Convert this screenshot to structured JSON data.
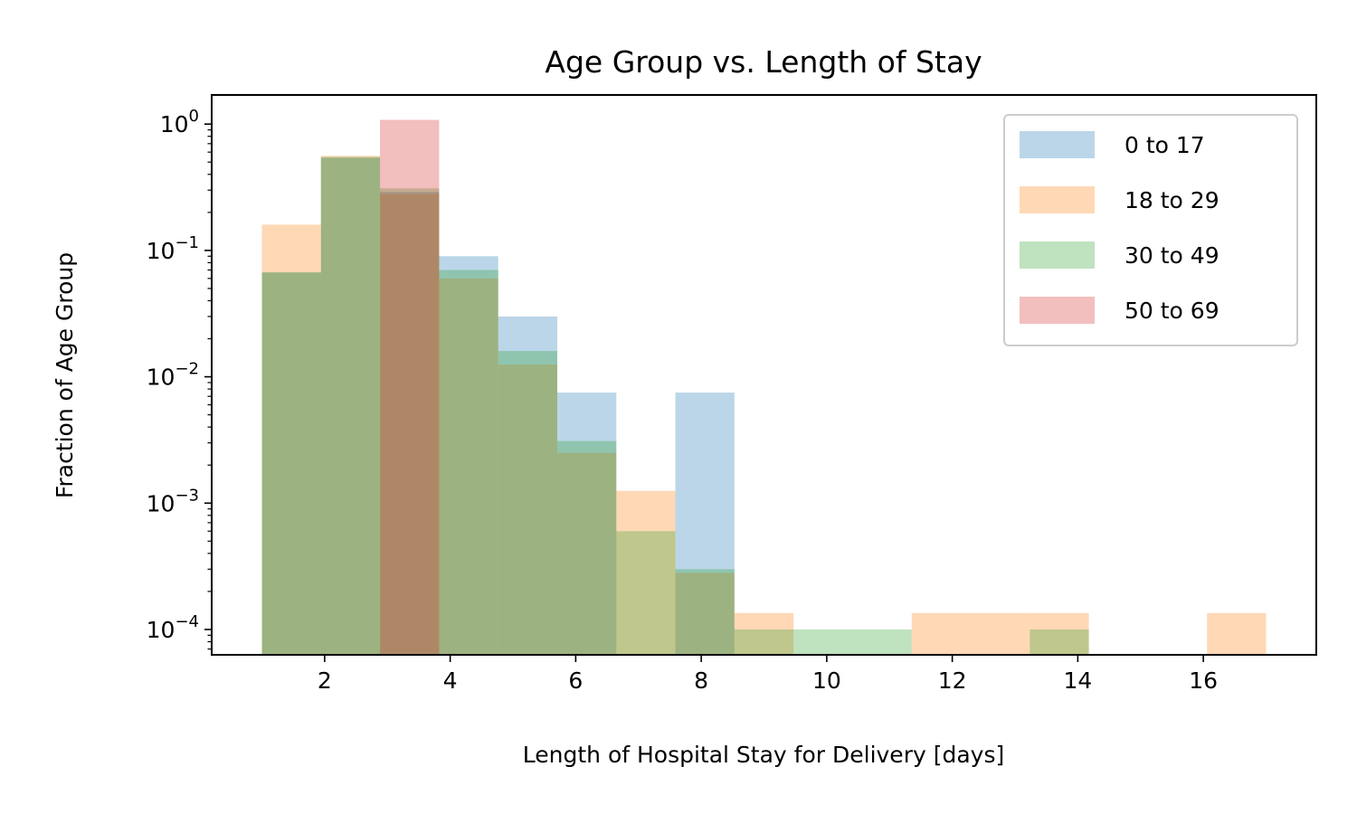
{
  "chart_data": {
    "type": "histogram",
    "title": "Age Group vs. Length of Stay",
    "xlabel": "Length of Hospital Stay for Delivery [days]",
    "ylabel": "Fraction of Age Group",
    "xlim": [
      0.2,
      17.8
    ],
    "ylim": [
      6.3e-05,
      1.7
    ],
    "yscale": "log",
    "grid": false,
    "legend_position": "top-right",
    "x_ticks": [
      {
        "value": 2,
        "label": "2"
      },
      {
        "value": 4,
        "label": "4"
      },
      {
        "value": 6,
        "label": "6"
      },
      {
        "value": 8,
        "label": "8"
      },
      {
        "value": 10,
        "label": "10"
      },
      {
        "value": 12,
        "label": "12"
      },
      {
        "value": 14,
        "label": "14"
      },
      {
        "value": 16,
        "label": "16"
      }
    ],
    "y_ticks": [
      {
        "value": 1,
        "base": "10",
        "exp": "0"
      },
      {
        "value": 0.1,
        "base": "10",
        "exp": "−1"
      },
      {
        "value": 0.01,
        "base": "10",
        "exp": "−2"
      },
      {
        "value": 0.001,
        "base": "10",
        "exp": "−3"
      },
      {
        "value": 0.0001,
        "base": "10",
        "exp": "−4"
      }
    ],
    "bin_edges": [
      1.0,
      1.941,
      2.882,
      3.824,
      4.765,
      5.706,
      6.647,
      7.588,
      8.529,
      9.471,
      10.412,
      11.353,
      12.294,
      13.235,
      14.176,
      15.118,
      16.059,
      17.0
    ],
    "series": [
      {
        "name": "0 to 17",
        "color": "#1f77b4",
        "values": [
          0.067,
          0.54,
          0.29,
          0.09,
          0.03,
          0.0075,
          0,
          0.0075,
          0,
          0,
          0,
          0,
          0,
          0,
          0,
          0,
          0
        ]
      },
      {
        "name": "18 to 29",
        "color": "#ff7f0e",
        "values": [
          0.16,
          0.56,
          0.28,
          0.06,
          0.0125,
          0.0025,
          0.00125,
          0.00028,
          0.000135,
          0,
          0,
          0.000135,
          0.000135,
          0.000135,
          0,
          0,
          0.000135
        ]
      },
      {
        "name": "30 to 49",
        "color": "#2ca02c",
        "values": [
          0.067,
          0.55,
          0.31,
          0.07,
          0.016,
          0.0031,
          0.0006,
          0.0003,
          0.0001,
          0.0001,
          0.0001,
          0,
          0,
          0.0001,
          0,
          0,
          0
        ]
      },
      {
        "name": "50 to 69",
        "color": "#d62728",
        "values": [
          0,
          0,
          1.08,
          0,
          0,
          0,
          0,
          0,
          0,
          0,
          0,
          0,
          0,
          0,
          0,
          0,
          0
        ]
      }
    ]
  }
}
